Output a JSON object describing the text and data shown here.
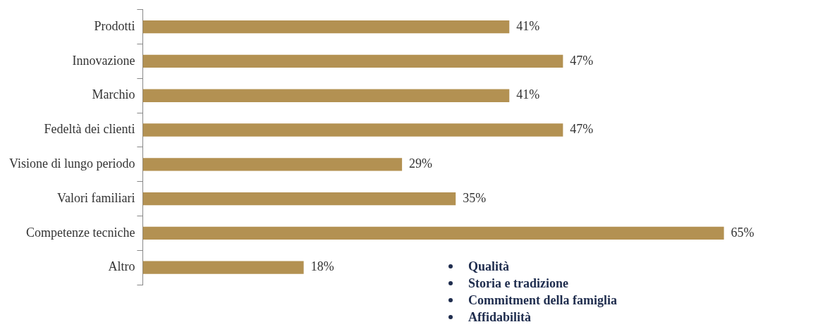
{
  "chart_data": {
    "type": "bar",
    "orientation": "horizontal",
    "categories": [
      "Prodotti",
      "Innovazione",
      "Marchio",
      "Fedeltà dei clienti",
      "Visione di lungo periodo",
      "Valori familiari",
      "Competenze tecniche",
      "Altro"
    ],
    "values": [
      41,
      47,
      41,
      47,
      29,
      35,
      65,
      18
    ],
    "color": "#b39152",
    "value_labels": [
      "41%",
      "47%",
      "41%",
      "47%",
      "29%",
      "35%",
      "65%",
      "18%"
    ],
    "annotations": [
      "Qualità",
      "Storia e tradizione",
      "Commitment della famiglia",
      "Affidabilità"
    ]
  }
}
